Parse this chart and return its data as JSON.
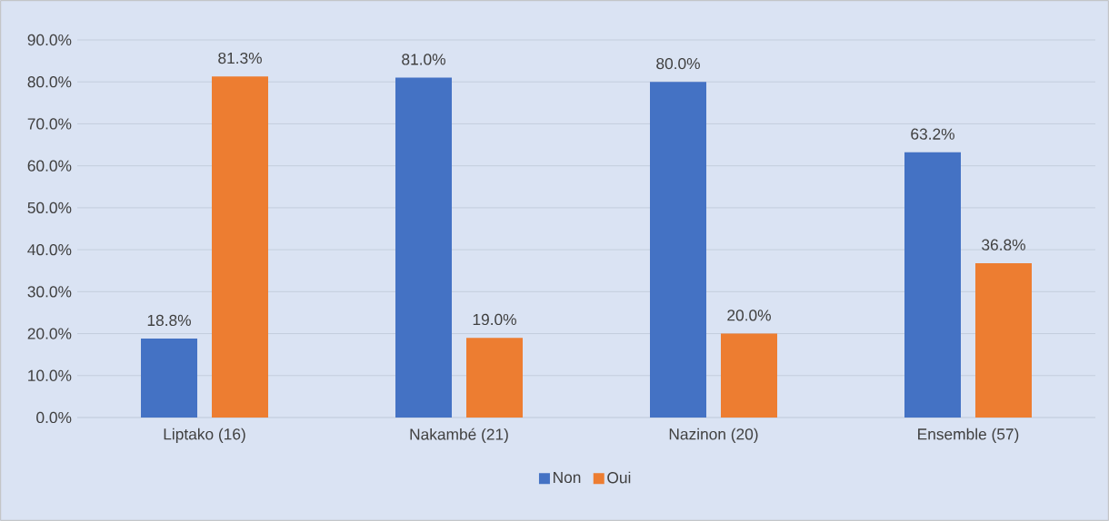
{
  "chart_data": {
    "type": "bar",
    "categories": [
      "Liptako (16)",
      "Nakambé (21)",
      "Nazinon (20)",
      "Ensemble (57)"
    ],
    "series": [
      {
        "name": "Non",
        "color": "#4472c4",
        "values": [
          18.8,
          81.0,
          80.0,
          63.2
        ],
        "value_labels": [
          "18.8%",
          "81.0%",
          "80.0%",
          "63.2%"
        ]
      },
      {
        "name": "Oui",
        "color": "#ed7d31",
        "values": [
          81.3,
          19.0,
          20.0,
          36.8
        ],
        "value_labels": [
          "81.3%",
          "19.0%",
          "20.0%",
          "36.8%"
        ]
      }
    ],
    "ylim": [
      0,
      90
    ],
    "yticks": [
      {
        "value": 0,
        "label": "0.0%"
      },
      {
        "value": 10,
        "label": "10.0%"
      },
      {
        "value": 20,
        "label": "20.0%"
      },
      {
        "value": 30,
        "label": "30.0%"
      },
      {
        "value": 40,
        "label": "40.0%"
      },
      {
        "value": 50,
        "label": "50.0%"
      },
      {
        "value": 60,
        "label": "60.0%"
      },
      {
        "value": 70,
        "label": "70.0%"
      },
      {
        "value": 80,
        "label": "80.0%"
      },
      {
        "value": 90,
        "label": "90.0%"
      }
    ],
    "grid": "y",
    "legend": "bottom"
  }
}
